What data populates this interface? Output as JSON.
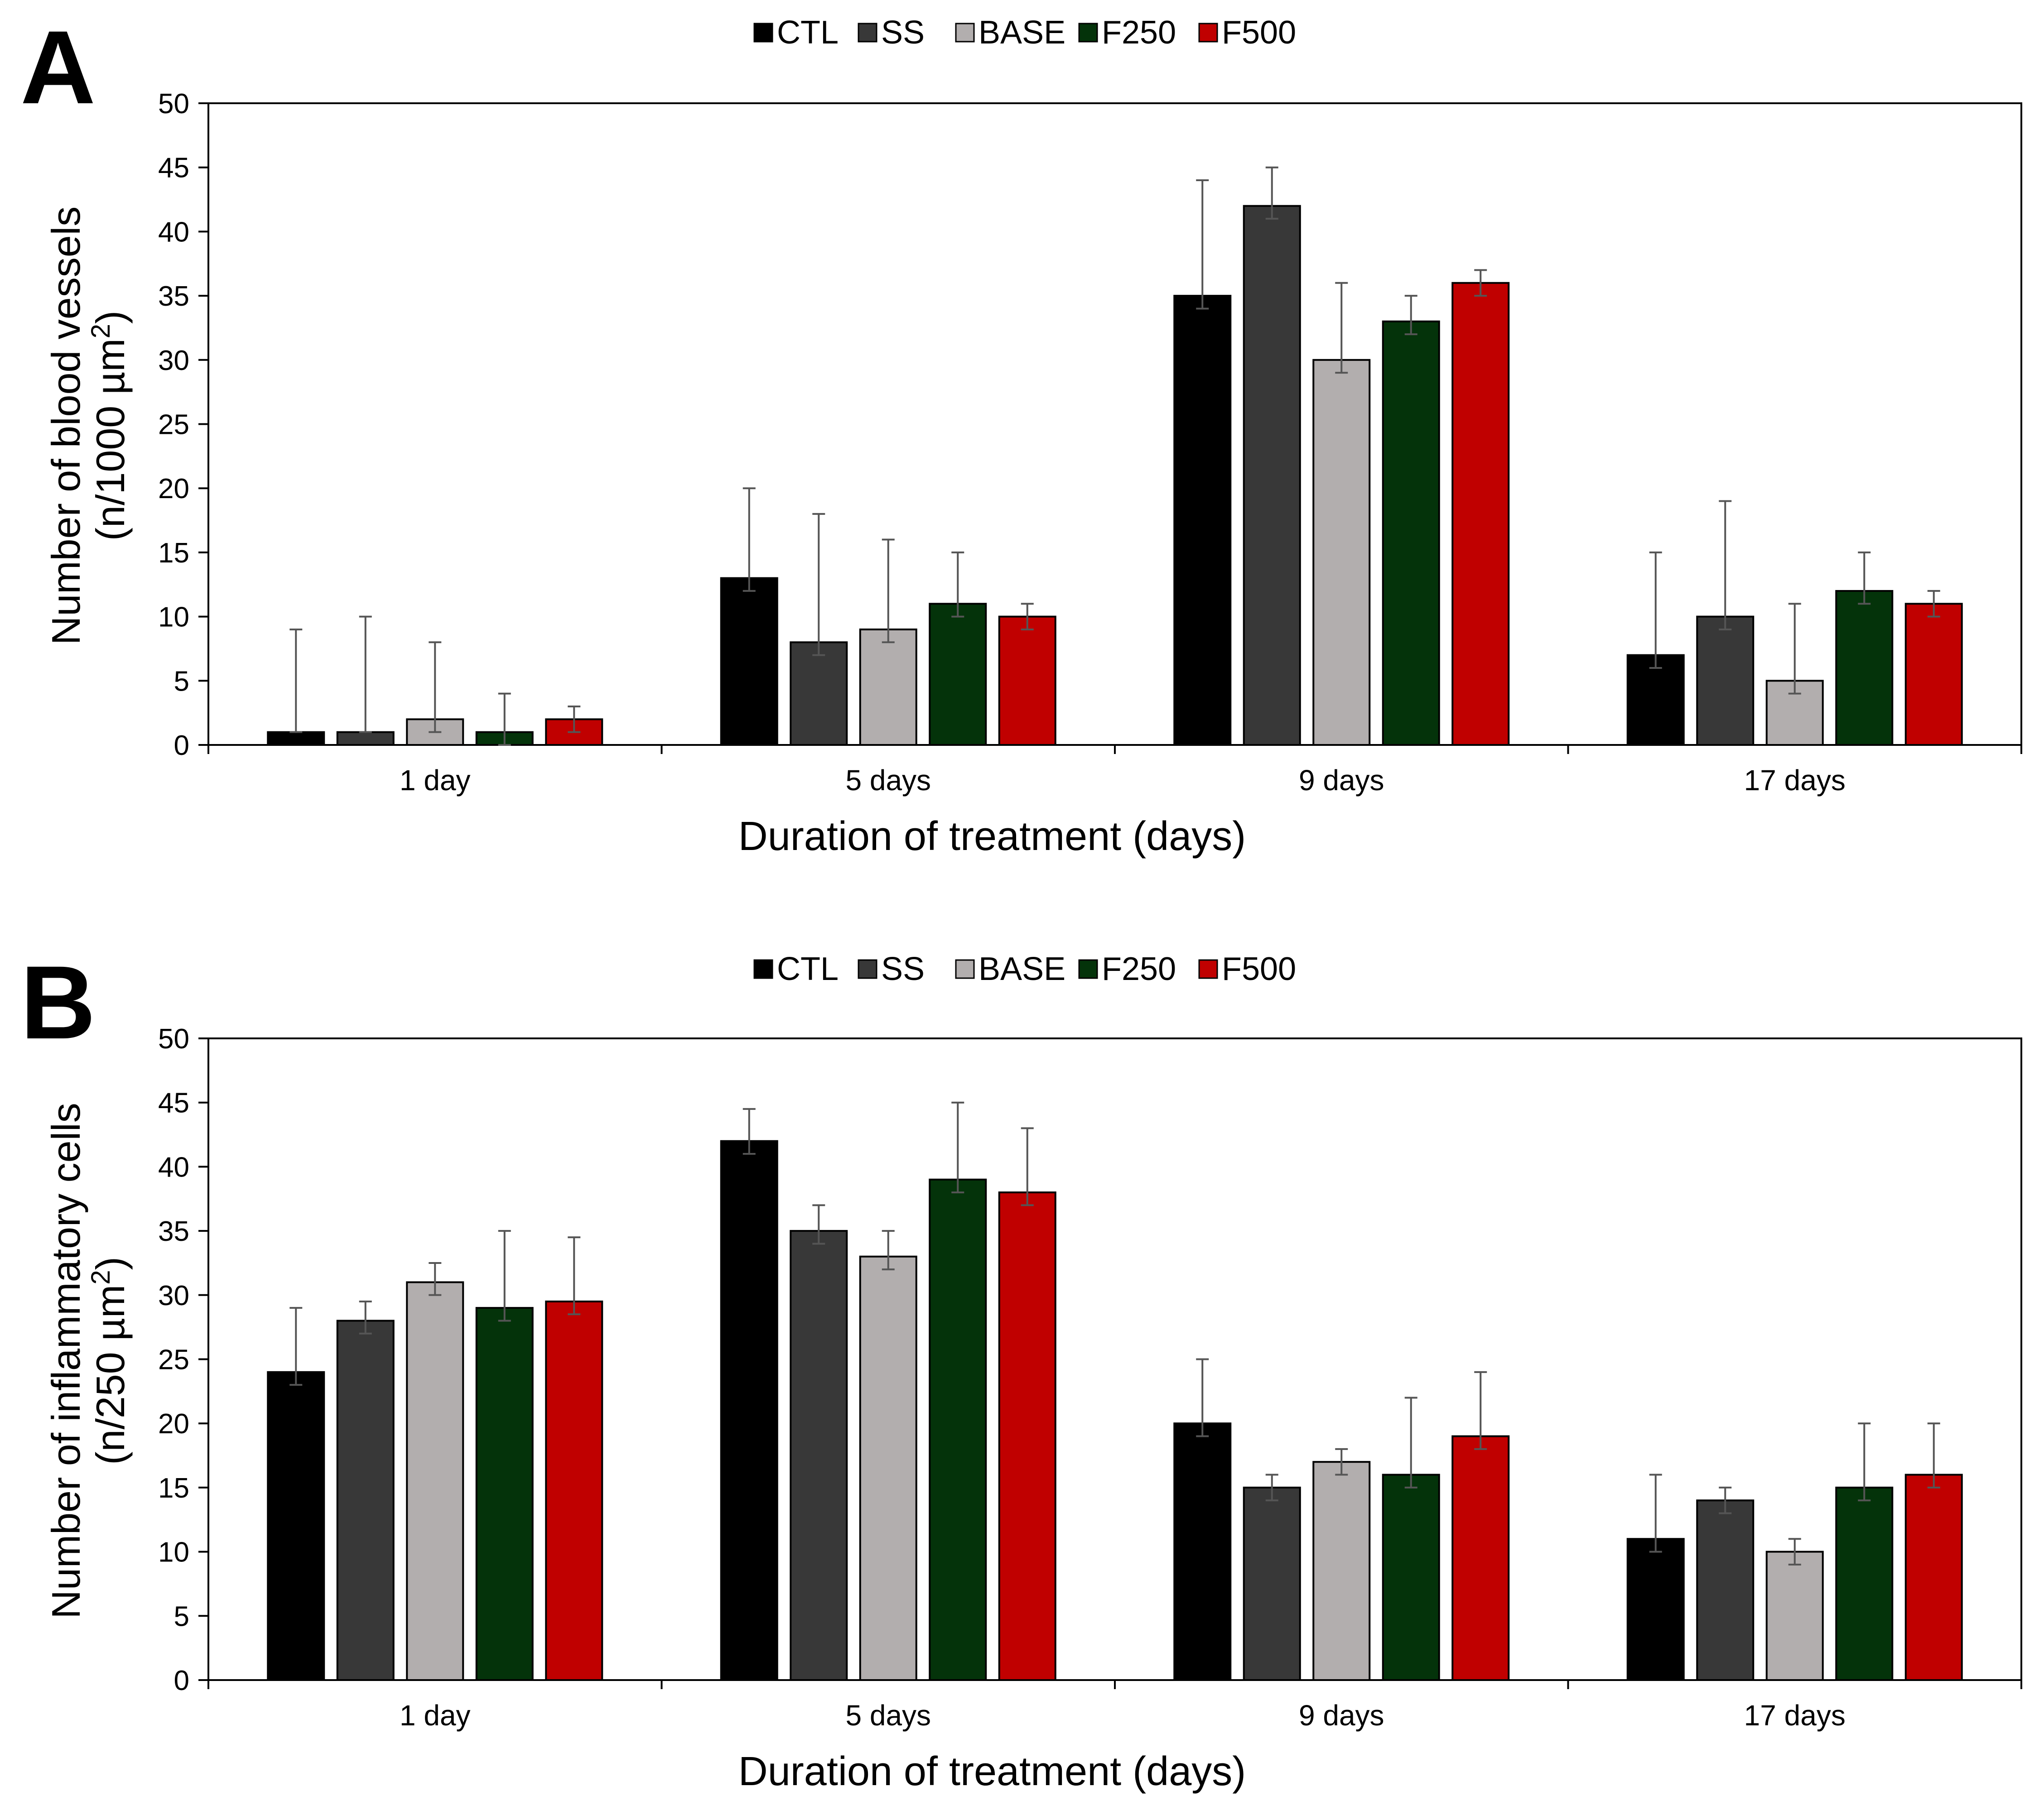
{
  "colors": {
    "CTL": "#000000",
    "SS": "#383838",
    "BASE": "#b2aeae",
    "F250": "#04330a",
    "F500": "#c00000"
  },
  "chart_data": [
    {
      "type": "bar",
      "panel": "A",
      "categories": [
        "1 day",
        "5 days",
        "9 days",
        "17 days"
      ],
      "series": [
        {
          "name": "CTL",
          "values": [
            1,
            13,
            35,
            7
          ],
          "err_high": [
            9,
            20,
            44,
            15
          ],
          "err_low": [
            1,
            12,
            34,
            6
          ]
        },
        {
          "name": "SS",
          "values": [
            1,
            8,
            42,
            10
          ],
          "err_high": [
            10,
            18,
            45,
            19
          ],
          "err_low": [
            1,
            7,
            41,
            9
          ]
        },
        {
          "name": "BASE",
          "values": [
            2,
            9,
            30,
            5
          ],
          "err_high": [
            8,
            16,
            36,
            11
          ],
          "err_low": [
            1,
            8,
            29,
            4
          ]
        },
        {
          "name": "F250",
          "values": [
            1,
            11,
            33,
            12
          ],
          "err_high": [
            4,
            15,
            35,
            15
          ],
          "err_low": [
            0,
            10,
            32,
            11
          ]
        },
        {
          "name": "F500",
          "values": [
            2,
            10,
            36,
            11
          ],
          "err_high": [
            3,
            11,
            37,
            12
          ],
          "err_low": [
            1,
            9,
            35,
            10
          ]
        }
      ],
      "ylim": [
        0,
        50
      ],
      "yticks": [
        0,
        5,
        10,
        15,
        20,
        25,
        30,
        35,
        40,
        45,
        50
      ],
      "xlabel": "Duration of treatment (days)",
      "ylabel_line1": "Number of blood vessels",
      "ylabel_line2": "(n/1000 µm",
      "ylabel_sup": "2",
      "ylabel_close": ")",
      "legend": [
        "CTL",
        "SS",
        "BASE",
        "F250",
        "F500"
      ]
    },
    {
      "type": "bar",
      "panel": "B",
      "categories": [
        "1 day",
        "5 days",
        "9 days",
        "17 days"
      ],
      "series": [
        {
          "name": "CTL",
          "values": [
            24,
            42,
            20,
            11
          ],
          "err_high": [
            29,
            44.5,
            25,
            16
          ],
          "err_low": [
            23,
            41,
            19,
            10
          ]
        },
        {
          "name": "SS",
          "values": [
            28,
            35,
            15,
            14
          ],
          "err_high": [
            29.5,
            37,
            16,
            15
          ],
          "err_low": [
            27,
            34,
            14,
            13
          ]
        },
        {
          "name": "BASE",
          "values": [
            31,
            33,
            17,
            10
          ],
          "err_high": [
            32.5,
            35,
            18,
            11
          ],
          "err_low": [
            30,
            32,
            16,
            9
          ]
        },
        {
          "name": "F250",
          "values": [
            29,
            39,
            16,
            15
          ],
          "err_high": [
            35,
            45,
            22,
            20
          ],
          "err_low": [
            28,
            38,
            15,
            14
          ]
        },
        {
          "name": "F500",
          "values": [
            29.5,
            38,
            19,
            16
          ],
          "err_high": [
            34.5,
            43,
            24,
            20
          ],
          "err_low": [
            28.5,
            37,
            18,
            15
          ]
        }
      ],
      "ylim": [
        0,
        50
      ],
      "yticks": [
        0,
        5,
        10,
        15,
        20,
        25,
        30,
        35,
        40,
        45,
        50
      ],
      "xlabel": "Duration of treatment (days)",
      "ylabel_line1": "Number of inflammatory cells",
      "ylabel_line2": "(n/250 µm",
      "ylabel_sup": "2",
      "ylabel_close": ")",
      "legend": [
        "CTL",
        "SS",
        "BASE",
        "F250",
        "F500"
      ]
    }
  ]
}
